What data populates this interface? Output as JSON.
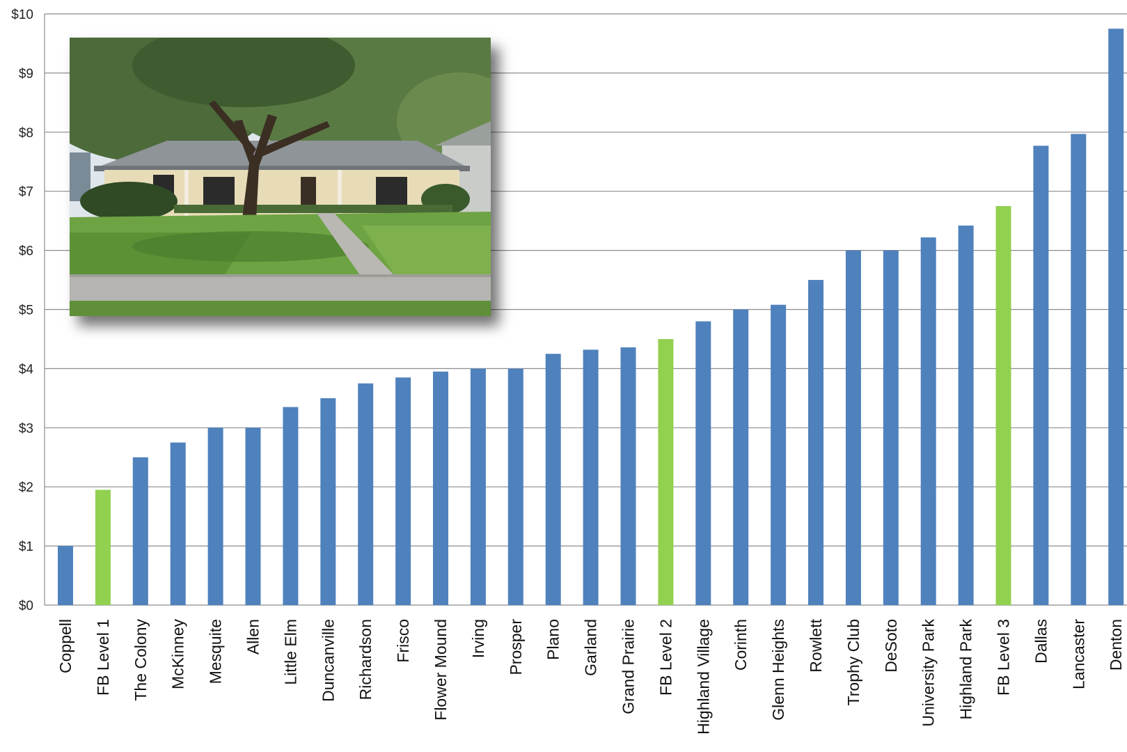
{
  "chart_data": {
    "type": "bar",
    "title": "",
    "xlabel": "",
    "ylabel": "",
    "ylim": [
      0,
      10
    ],
    "y_tick_labels": [
      "$0",
      "$1",
      "$2",
      "$3",
      "$4",
      "$5",
      "$6",
      "$7",
      "$8",
      "$9",
      "$10"
    ],
    "grid": true,
    "categories": [
      "Coppell",
      "FB Level 1",
      "The Colony",
      "McKinney",
      "Mesquite",
      "Allen",
      "Little Elm",
      "Duncanville",
      "Richardson",
      "Frisco",
      "Flower Mound",
      "Irving",
      "Prosper",
      "Plano",
      "Garland",
      "Grand Prairie",
      "FB Level 2",
      "Highland Village",
      "Corinth",
      "Glenn Heights",
      "Rowlett",
      "Trophy Club",
      "DeSoto",
      "University Park",
      "Highland Park",
      "FB Level 3",
      "Dallas",
      "Lancaster",
      "Denton"
    ],
    "values": [
      1.0,
      1.95,
      2.5,
      2.75,
      3.0,
      3.0,
      3.35,
      3.5,
      3.75,
      3.85,
      3.95,
      4.0,
      4.0,
      4.25,
      4.32,
      4.36,
      4.5,
      4.8,
      5.0,
      5.08,
      5.5,
      6.0,
      6.0,
      6.22,
      6.42,
      6.75,
      7.77,
      7.97,
      9.75
    ],
    "highlighted": [
      "FB Level 1",
      "FB Level 2",
      "FB Level 3"
    ],
    "colors": {
      "bar": "#4f81bd",
      "highlight": "#92d050",
      "grid": "#8c8c8c"
    }
  },
  "photo": {
    "subject": "single-story brick house with large oak tree and lawn"
  }
}
